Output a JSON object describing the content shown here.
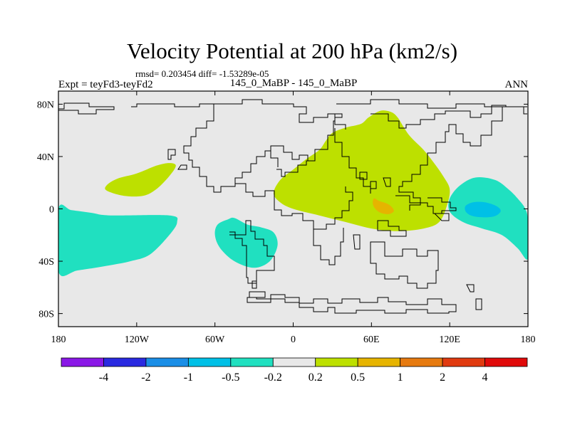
{
  "chart_data": {
    "type": "heatmap",
    "title": "Velocity Potential at 200 hPa (km2/s)",
    "stats": "rmsd= 0.203454 diff= -1.53289e-05",
    "left_label": "Expt = teyFd3-teyFd2",
    "center_label": "145_0_MaBP - 145_0_MaBP",
    "right_label": "ANN",
    "xlabel": "",
    "ylabel": "",
    "xlim": [
      -180,
      180
    ],
    "ylim": [
      -90,
      90
    ],
    "x_ticks": [
      {
        "value": -180,
        "label": "180"
      },
      {
        "value": -120,
        "label": "120W"
      },
      {
        "value": -60,
        "label": "60W"
      },
      {
        "value": 0,
        "label": "0"
      },
      {
        "value": 60,
        "label": "60E"
      },
      {
        "value": 120,
        "label": "120E"
      },
      {
        "value": 180,
        "label": "180"
      }
    ],
    "y_ticks": [
      {
        "value": 80,
        "label": "80N"
      },
      {
        "value": 40,
        "label": "40N"
      },
      {
        "value": 0,
        "label": "0"
      },
      {
        "value": -40,
        "label": "40S"
      },
      {
        "value": -80,
        "label": "80S"
      }
    ],
    "colorbar": {
      "colors": [
        "#8a18e6",
        "#2a2ae0",
        "#1a8ee6",
        "#00c0e6",
        "#20e0c0",
        "#e8e8e8",
        "#bde000",
        "#e6b400",
        "#e67a10",
        "#e03a10",
        "#e00a0a"
      ],
      "labels": [
        "-4",
        "-2",
        "-1",
        "-0.5",
        "-0.2",
        "0.2",
        "0.5",
        "1",
        "2",
        "4"
      ],
      "background_index": 5
    },
    "regions": [
      {
        "name": "eurasia-africa-positive",
        "bin": "0.2 to 0.5",
        "color_index": 6,
        "polygon": [
          [
            52,
            65
          ],
          [
            58,
            70
          ],
          [
            67,
            75
          ],
          [
            75,
            74
          ],
          [
            80,
            70
          ],
          [
            85,
            62
          ],
          [
            90,
            55
          ],
          [
            100,
            45
          ],
          [
            108,
            35
          ],
          [
            115,
            25
          ],
          [
            120,
            15
          ],
          [
            118,
            3
          ],
          [
            112,
            -10
          ],
          [
            100,
            -15
          ],
          [
            80,
            -17
          ],
          [
            60,
            -15
          ],
          [
            40,
            -10
          ],
          [
            20,
            -5
          ],
          [
            0,
            0
          ],
          [
            -10,
            5
          ],
          [
            -15,
            12
          ],
          [
            -10,
            22
          ],
          [
            0,
            30
          ],
          [
            10,
            38
          ],
          [
            20,
            45
          ],
          [
            25,
            52
          ],
          [
            30,
            58
          ],
          [
            40,
            62
          ]
        ]
      },
      {
        "name": "arabian-sea-max",
        "bin": "0.5 to 1",
        "color_index": 7,
        "polygon": [
          [
            62,
            8
          ],
          [
            66,
            6
          ],
          [
            72,
            4
          ],
          [
            76,
            1
          ],
          [
            77,
            -2
          ],
          [
            73,
            -4
          ],
          [
            67,
            -3
          ],
          [
            63,
            0
          ],
          [
            61,
            4
          ]
        ]
      },
      {
        "name": "north-pacific-positive",
        "bin": "0.2 to 0.5",
        "color_index": 6,
        "polygon": [
          [
            -143,
            18
          ],
          [
            -135,
            23
          ],
          [
            -120,
            27
          ],
          [
            -105,
            33
          ],
          [
            -95,
            35
          ],
          [
            -90,
            33
          ],
          [
            -95,
            25
          ],
          [
            -105,
            15
          ],
          [
            -115,
            10
          ],
          [
            -130,
            10
          ],
          [
            -143,
            14
          ]
        ]
      },
      {
        "name": "south-pacific-negative",
        "bin": "-0.5 to -0.2",
        "color_index": 4,
        "polygon": [
          [
            -180,
            0
          ],
          [
            -170,
            -1
          ],
          [
            -155,
            -3
          ],
          [
            -140,
            -5
          ],
          [
            -95,
            -5
          ],
          [
            -89,
            -10
          ],
          [
            -95,
            -20
          ],
          [
            -110,
            -35
          ],
          [
            -125,
            -40
          ],
          [
            -140,
            -43
          ],
          [
            -165,
            -47
          ],
          [
            -180,
            -48
          ]
        ]
      },
      {
        "name": "south-atlantic-negative",
        "bin": "-0.5 to -0.2",
        "color_index": 4,
        "polygon": [
          [
            -45,
            -7
          ],
          [
            -35,
            -12
          ],
          [
            -25,
            -14
          ],
          [
            -15,
            -18
          ],
          [
            -12,
            -28
          ],
          [
            -18,
            -40
          ],
          [
            -30,
            -45
          ],
          [
            -45,
            -40
          ],
          [
            -56,
            -30
          ],
          [
            -60,
            -20
          ],
          [
            -58,
            -12
          ],
          [
            -50,
            -8
          ]
        ]
      },
      {
        "name": "west-pacific-negative",
        "bin": "-0.5 to -0.2",
        "color_index": 4,
        "polygon": [
          [
            120,
            8
          ],
          [
            128,
            18
          ],
          [
            140,
            24
          ],
          [
            155,
            22
          ],
          [
            165,
            15
          ],
          [
            172,
            8
          ],
          [
            178,
            0
          ],
          [
            180,
            -10
          ],
          [
            180,
            -38
          ],
          [
            172,
            -30
          ],
          [
            160,
            -20
          ],
          [
            145,
            -15
          ],
          [
            130,
            -10
          ],
          [
            120,
            -2
          ]
        ]
      },
      {
        "name": "west-pacific-min",
        "bin": "-1 to -0.5",
        "color_index": 3,
        "polygon": [
          [
            132,
            2
          ],
          [
            138,
            5
          ],
          [
            147,
            5
          ],
          [
            156,
            2
          ],
          [
            159,
            -2
          ],
          [
            153,
            -6
          ],
          [
            140,
            -6
          ],
          [
            133,
            -3
          ]
        ]
      }
    ]
  }
}
